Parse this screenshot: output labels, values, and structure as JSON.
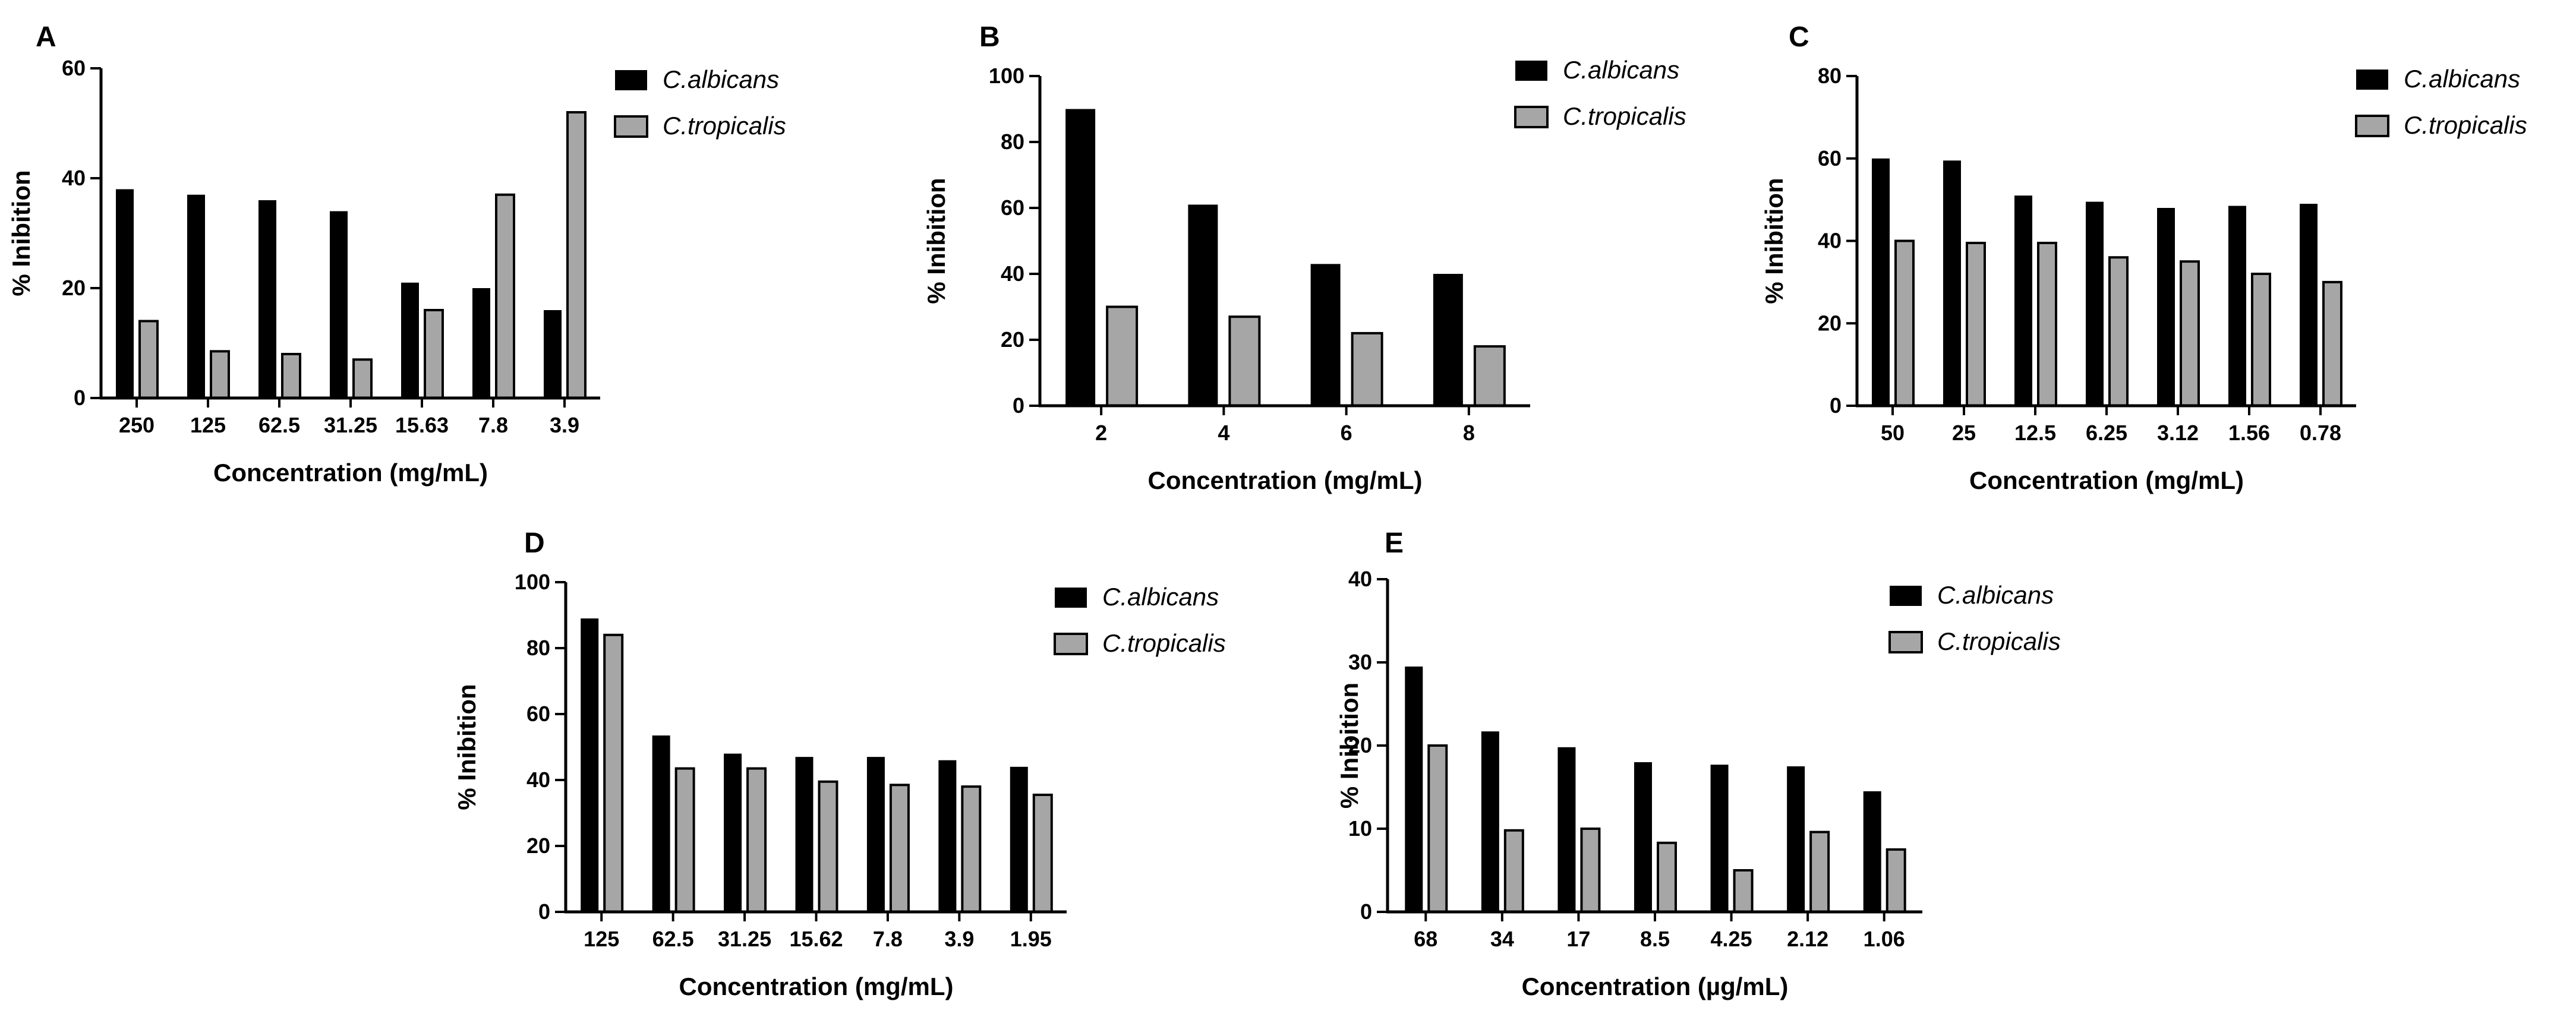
{
  "colors": {
    "series1": "#000000",
    "series2": "#a6a6a6",
    "axis": "#000000"
  },
  "chart_data": [
    {
      "panel": "A",
      "type": "bar",
      "categories": [
        "250",
        "125",
        "62.5",
        "31.25",
        "15.63",
        "7.8",
        "3.9"
      ],
      "series": [
        {
          "name": "C.albicans",
          "values": [
            38,
            37,
            36,
            34,
            21,
            20,
            16
          ]
        },
        {
          "name": "C.tropicalis",
          "values": [
            14,
            8.5,
            8,
            7,
            16,
            37,
            52
          ]
        }
      ],
      "ylim": [
        0,
        60
      ],
      "yticks": [
        0,
        20,
        40,
        60
      ],
      "xlabel": "Concentration (mg/mL)",
      "ylabel": "% Inibition"
    },
    {
      "panel": "B",
      "type": "bar",
      "categories": [
        "2",
        "4",
        "6",
        "8"
      ],
      "series": [
        {
          "name": "C.albicans",
          "values": [
            90,
            61,
            43,
            40
          ]
        },
        {
          "name": "C.tropicalis",
          "values": [
            30,
            27,
            22,
            18
          ]
        }
      ],
      "ylim": [
        0,
        100
      ],
      "yticks": [
        0,
        20,
        40,
        60,
        80,
        100
      ],
      "xlabel": "Concentration (mg/mL)",
      "ylabel": "% Inibition"
    },
    {
      "panel": "C",
      "type": "bar",
      "categories": [
        "50",
        "25",
        "12.5",
        "6.25",
        "3.12",
        "1.56",
        "0.78"
      ],
      "series": [
        {
          "name": "C.albicans",
          "values": [
            60,
            59.5,
            51,
            49.5,
            48,
            48.5,
            49
          ]
        },
        {
          "name": "C.tropicalis",
          "values": [
            40,
            39.5,
            39.5,
            36,
            35,
            32,
            30
          ]
        }
      ],
      "ylim": [
        0,
        80
      ],
      "yticks": [
        0,
        20,
        40,
        60,
        80
      ],
      "xlabel": "Concentration (mg/mL)",
      "ylabel": "% Inibition"
    },
    {
      "panel": "D",
      "type": "bar",
      "categories": [
        "125",
        "62.5",
        "31.25",
        "15.62",
        "7.8",
        "3.9",
        "1.95"
      ],
      "series": [
        {
          "name": "C.albicans",
          "values": [
            89,
            53.5,
            48,
            47,
            47,
            46,
            44
          ]
        },
        {
          "name": "C.tropicalis",
          "values": [
            84,
            43.5,
            43.5,
            39.5,
            38.5,
            38,
            35.5
          ]
        }
      ],
      "ylim": [
        0,
        100
      ],
      "yticks": [
        0,
        20,
        40,
        60,
        80,
        100
      ],
      "xlabel": "Concentration (mg/mL)",
      "ylabel": "% Inibition"
    },
    {
      "panel": "E",
      "type": "bar",
      "categories": [
        "68",
        "34",
        "17",
        "8.5",
        "4.25",
        "2.12",
        "1.06"
      ],
      "series": [
        {
          "name": "C.albicans",
          "values": [
            29.5,
            21.7,
            19.8,
            18,
            17.7,
            17.5,
            14.5
          ]
        },
        {
          "name": "C.tropicalis",
          "values": [
            20,
            9.8,
            10,
            8.3,
            5,
            9.6,
            7.5
          ]
        }
      ],
      "ylim": [
        0,
        40
      ],
      "yticks": [
        0,
        10,
        20,
        30,
        40
      ],
      "xlabel": "Concentration (µg/mL)",
      "ylabel": "% Inibition"
    }
  ]
}
